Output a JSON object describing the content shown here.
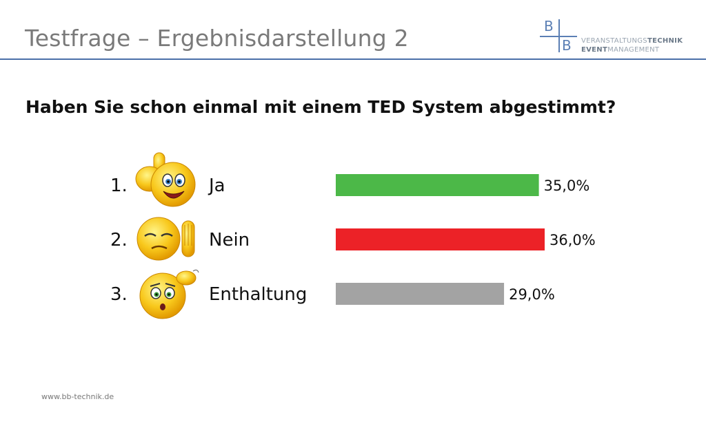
{
  "header": {
    "title": "Testfrage – Ergebnisdarstellung 2",
    "logo": {
      "letter_top": "B",
      "letter_bottom": "B",
      "line1_plain": "VERANSTALTUNGS",
      "line1_strong": "TECHNIK",
      "line2_strong": "EVENT",
      "line2_plain": "MANAGEMENT",
      "color": "#5b7fb4"
    }
  },
  "question": "Haben Sie schon einmal mit einem TED System abgestimmt?",
  "rows": [
    {
      "number": "1.",
      "label": "Ja",
      "icon": "thumbs-up-smiley-icon"
    },
    {
      "number": "2.",
      "label": "Nein",
      "icon": "stop-hand-smiley-icon"
    },
    {
      "number": "3.",
      "label": "Enthaltung",
      "icon": "head-scratch-smiley-icon"
    }
  ],
  "chart_data": {
    "type": "bar",
    "orientation": "horizontal",
    "categories": [
      "Ja",
      "Nein",
      "Enthaltung"
    ],
    "values": [
      35.0,
      36.0,
      29.0
    ],
    "value_labels": [
      "35,0%",
      "36,0%",
      "29,0%"
    ],
    "colors": [
      "#4cb848",
      "#ec2227",
      "#a3a3a3"
    ],
    "xlim": [
      0,
      36
    ],
    "grid": false,
    "axes_visible": false
  },
  "footer": {
    "url": "www.bb-technik.de"
  }
}
